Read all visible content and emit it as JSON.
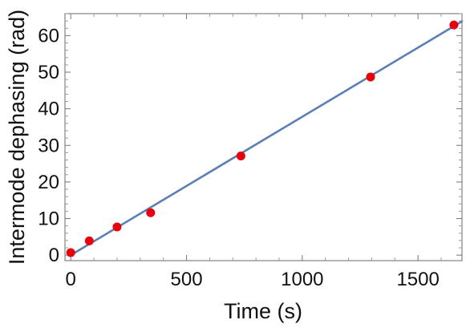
{
  "chart_data": {
    "type": "scatter",
    "title": "",
    "xlabel": "Time (s)",
    "ylabel": "Intermode dephasing (rad)",
    "xlim": [
      -25,
      1690
    ],
    "ylim": [
      -1.5,
      66
    ],
    "x_ticks": [
      0,
      500,
      1000,
      1500
    ],
    "y_ticks": [
      0,
      10,
      20,
      30,
      40,
      50,
      60
    ],
    "x_tick_labels": [
      "0",
      "500",
      "1000",
      "1500"
    ],
    "y_tick_labels": [
      "0",
      "10",
      "20",
      "30",
      "40",
      "50",
      "60"
    ],
    "grid": false,
    "legend": "none",
    "series": [
      {
        "kind": "points",
        "color": "#e8000b",
        "x": [
          0,
          80,
          200,
          345,
          735,
          1295,
          1655
        ],
        "y": [
          0.7,
          3.9,
          7.7,
          11.6,
          27.1,
          48.7,
          62.9
        ]
      },
      {
        "kind": "fit-line",
        "color": "#5b7fb5",
        "x": [
          0,
          1690
        ],
        "y": [
          0,
          63.9
        ]
      }
    ]
  }
}
